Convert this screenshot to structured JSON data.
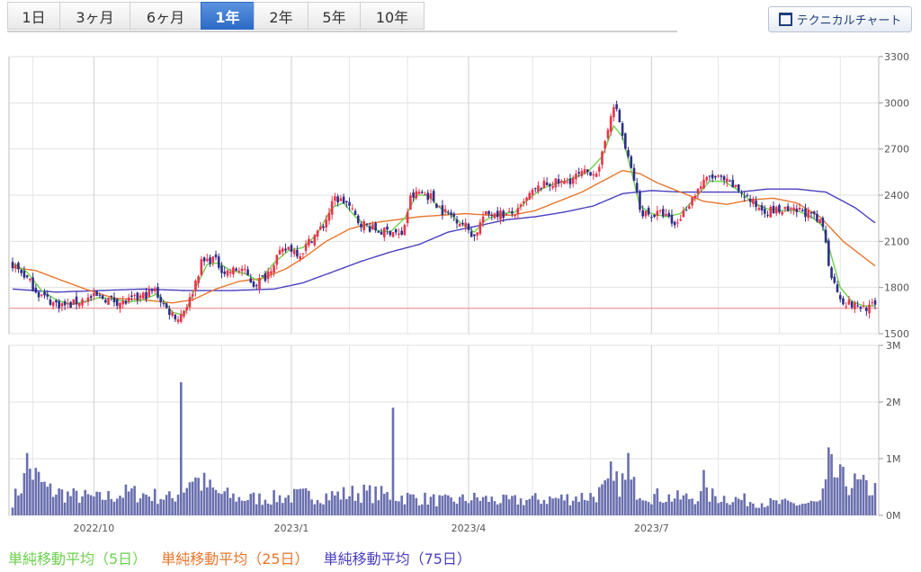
{
  "tabs": [
    "1日",
    "3ヶ月",
    "6ヶ月",
    "1年",
    "2年",
    "5年",
    "10年"
  ],
  "active_tab": "1年",
  "tech_button": "テクニカルチャート",
  "legend": [
    {
      "label": "単純移動平均（5日）",
      "color": "#6cd14e"
    },
    {
      "label": "単純移動平均（25日）",
      "color": "#e8762c"
    },
    {
      "label": "単純移動平均（75日）",
      "color": "#4a3fc0"
    }
  ],
  "colors": {
    "up": "#e8344a",
    "down": "#2f2f86",
    "volume": "#6a6fae",
    "hline": "#ee8080"
  },
  "chart_data": {
    "type": "candlestick",
    "price_ylim": [
      1500,
      3300
    ],
    "price_ticks": [
      "3300",
      "3000",
      "2700",
      "2400",
      "2100",
      "1800",
      "1500"
    ],
    "volume_ylim": [
      0,
      3
    ],
    "volume_ticks": [
      "3M",
      "2M",
      "1M",
      "0M"
    ],
    "x_ticks": [
      "2022/10",
      "2023/1",
      "2023/4",
      "2023/7"
    ],
    "reference_line": 1665,
    "close_keypoints": [
      [
        0,
        1950
      ],
      [
        4,
        1880
      ],
      [
        9,
        1760
      ],
      [
        14,
        1700
      ],
      [
        19,
        1680
      ],
      [
        24,
        1720
      ],
      [
        29,
        1740
      ],
      [
        34,
        1720
      ],
      [
        38,
        1700
      ],
      [
        43,
        1730
      ],
      [
        49,
        1780
      ],
      [
        53,
        1660
      ],
      [
        57,
        1600
      ],
      [
        61,
        1720
      ],
      [
        65,
        1960
      ],
      [
        69,
        1990
      ],
      [
        73,
        1900
      ],
      [
        79,
        1920
      ],
      [
        83,
        1820
      ],
      [
        87,
        1870
      ],
      [
        91,
        2000
      ],
      [
        95,
        2060
      ],
      [
        99,
        2020
      ],
      [
        103,
        2120
      ],
      [
        107,
        2200
      ],
      [
        111,
        2380
      ],
      [
        115,
        2350
      ],
      [
        119,
        2230
      ],
      [
        123,
        2190
      ],
      [
        127,
        2160
      ],
      [
        131,
        2170
      ],
      [
        134,
        2130
      ],
      [
        137,
        2380
      ],
      [
        140,
        2420
      ],
      [
        144,
        2390
      ],
      [
        148,
        2300
      ],
      [
        152,
        2260
      ],
      [
        156,
        2200
      ],
      [
        159,
        2130
      ],
      [
        162,
        2260
      ],
      [
        166,
        2290
      ],
      [
        170,
        2270
      ],
      [
        174,
        2290
      ],
      [
        178,
        2400
      ],
      [
        182,
        2460
      ],
      [
        186,
        2480
      ],
      [
        190,
        2480
      ],
      [
        194,
        2520
      ],
      [
        198,
        2550
      ],
      [
        202,
        2560
      ],
      [
        206,
        2940
      ],
      [
        208,
        2960
      ],
      [
        211,
        2700
      ],
      [
        214,
        2500
      ],
      [
        216,
        2300
      ],
      [
        220,
        2270
      ],
      [
        224,
        2280
      ],
      [
        228,
        2200
      ],
      [
        232,
        2320
      ],
      [
        236,
        2440
      ],
      [
        240,
        2520
      ],
      [
        244,
        2500
      ],
      [
        248,
        2460
      ],
      [
        252,
        2400
      ],
      [
        256,
        2330
      ],
      [
        260,
        2300
      ],
      [
        264,
        2300
      ],
      [
        268,
        2290
      ],
      [
        272,
        2300
      ],
      [
        276,
        2250
      ],
      [
        279,
        2200
      ],
      [
        281,
        1960
      ],
      [
        283,
        1820
      ],
      [
        286,
        1710
      ],
      [
        290,
        1680
      ],
      [
        294,
        1670
      ],
      [
        297,
        1680
      ]
    ],
    "ma5_keypoints": [
      [
        1,
        1950
      ],
      [
        5,
        1900
      ],
      [
        10,
        1780
      ],
      [
        15,
        1720
      ],
      [
        20,
        1690
      ],
      [
        25,
        1710
      ],
      [
        30,
        1735
      ],
      [
        35,
        1725
      ],
      [
        40,
        1705
      ],
      [
        45,
        1720
      ],
      [
        50,
        1760
      ],
      [
        55,
        1640
      ],
      [
        59,
        1620
      ],
      [
        63,
        1800
      ],
      [
        67,
        1950
      ],
      [
        71,
        1960
      ],
      [
        75,
        1910
      ],
      [
        80,
        1890
      ],
      [
        85,
        1840
      ],
      [
        90,
        1960
      ],
      [
        95,
        2040
      ],
      [
        100,
        2060
      ],
      [
        105,
        2150
      ],
      [
        110,
        2320
      ],
      [
        114,
        2350
      ],
      [
        118,
        2260
      ],
      [
        122,
        2200
      ],
      [
        126,
        2170
      ],
      [
        130,
        2160
      ],
      [
        135,
        2250
      ],
      [
        139,
        2400
      ],
      [
        143,
        2400
      ],
      [
        147,
        2320
      ],
      [
        151,
        2270
      ],
      [
        155,
        2210
      ],
      [
        159,
        2160
      ],
      [
        163,
        2240
      ],
      [
        168,
        2280
      ],
      [
        173,
        2290
      ],
      [
        178,
        2380
      ],
      [
        182,
        2440
      ],
      [
        186,
        2470
      ],
      [
        190,
        2490
      ],
      [
        194,
        2520
      ],
      [
        198,
        2550
      ],
      [
        203,
        2650
      ],
      [
        207,
        2850
      ],
      [
        210,
        2780
      ],
      [
        213,
        2560
      ],
      [
        216,
        2330
      ],
      [
        220,
        2280
      ],
      [
        225,
        2260
      ],
      [
        230,
        2280
      ],
      [
        235,
        2380
      ],
      [
        240,
        2490
      ],
      [
        245,
        2490
      ],
      [
        250,
        2430
      ],
      [
        255,
        2350
      ],
      [
        260,
        2310
      ],
      [
        265,
        2300
      ],
      [
        270,
        2300
      ],
      [
        275,
        2260
      ],
      [
        279,
        2200
      ],
      [
        282,
        2000
      ],
      [
        285,
        1800
      ],
      [
        289,
        1710
      ],
      [
        293,
        1680
      ],
      [
        297,
        1680
      ]
    ],
    "ma25_keypoints": [
      [
        0,
        1930
      ],
      [
        8,
        1910
      ],
      [
        15,
        1860
      ],
      [
        25,
        1790
      ],
      [
        35,
        1730
      ],
      [
        45,
        1720
      ],
      [
        55,
        1700
      ],
      [
        62,
        1720
      ],
      [
        70,
        1790
      ],
      [
        78,
        1840
      ],
      [
        86,
        1860
      ],
      [
        94,
        1920
      ],
      [
        100,
        1990
      ],
      [
        108,
        2100
      ],
      [
        116,
        2180
      ],
      [
        124,
        2220
      ],
      [
        132,
        2240
      ],
      [
        140,
        2260
      ],
      [
        148,
        2270
      ],
      [
        156,
        2280
      ],
      [
        164,
        2270
      ],
      [
        172,
        2270
      ],
      [
        180,
        2300
      ],
      [
        188,
        2360
      ],
      [
        196,
        2420
      ],
      [
        204,
        2500
      ],
      [
        210,
        2560
      ],
      [
        216,
        2540
      ],
      [
        222,
        2480
      ],
      [
        230,
        2420
      ],
      [
        238,
        2360
      ],
      [
        246,
        2340
      ],
      [
        254,
        2370
      ],
      [
        262,
        2380
      ],
      [
        270,
        2350
      ],
      [
        278,
        2260
      ],
      [
        286,
        2100
      ],
      [
        297,
        1940
      ]
    ],
    "ma75_keypoints": [
      [
        0,
        1790
      ],
      [
        15,
        1770
      ],
      [
        30,
        1780
      ],
      [
        45,
        1790
      ],
      [
        60,
        1780
      ],
      [
        75,
        1780
      ],
      [
        90,
        1790
      ],
      [
        100,
        1830
      ],
      [
        110,
        1900
      ],
      [
        120,
        1970
      ],
      [
        130,
        2030
      ],
      [
        140,
        2080
      ],
      [
        150,
        2160
      ],
      [
        160,
        2200
      ],
      [
        170,
        2240
      ],
      [
        180,
        2260
      ],
      [
        190,
        2290
      ],
      [
        200,
        2330
      ],
      [
        210,
        2410
      ],
      [
        220,
        2430
      ],
      [
        230,
        2420
      ],
      [
        240,
        2420
      ],
      [
        250,
        2420
      ],
      [
        260,
        2440
      ],
      [
        270,
        2440
      ],
      [
        280,
        2420
      ],
      [
        290,
        2320
      ],
      [
        297,
        2220
      ]
    ],
    "volume_keypoints": [
      [
        0,
        0.25
      ],
      [
        6,
        0.8
      ],
      [
        12,
        0.45
      ],
      [
        20,
        0.35
      ],
      [
        30,
        0.3
      ],
      [
        40,
        0.4
      ],
      [
        48,
        0.35
      ],
      [
        55,
        0.3
      ],
      [
        58,
        0.45
      ],
      [
        60,
        0.55
      ],
      [
        62,
        0.7
      ],
      [
        64,
        0.6
      ],
      [
        66,
        0.55
      ],
      [
        70,
        0.4
      ],
      [
        78,
        0.3
      ],
      [
        88,
        0.3
      ],
      [
        100,
        0.35
      ],
      [
        110,
        0.35
      ],
      [
        120,
        0.4
      ],
      [
        130,
        0.35
      ],
      [
        140,
        0.3
      ],
      [
        150,
        0.25
      ],
      [
        160,
        0.3
      ],
      [
        170,
        0.25
      ],
      [
        180,
        0.28
      ],
      [
        190,
        0.3
      ],
      [
        200,
        0.35
      ],
      [
        206,
        0.5
      ],
      [
        210,
        0.6
      ],
      [
        214,
        0.5
      ],
      [
        220,
        0.35
      ],
      [
        230,
        0.3
      ],
      [
        240,
        0.35
      ],
      [
        250,
        0.28
      ],
      [
        260,
        0.22
      ],
      [
        270,
        0.2
      ],
      [
        278,
        0.22
      ],
      [
        282,
        0.75
      ],
      [
        286,
        0.6
      ],
      [
        290,
        0.55
      ],
      [
        297,
        0.45
      ]
    ],
    "volume_spikes": [
      [
        5,
        1.1
      ],
      [
        58,
        2.35
      ],
      [
        131,
        1.9
      ],
      [
        206,
        0.95
      ],
      [
        212,
        1.1
      ],
      [
        281,
        1.2
      ],
      [
        238,
        0.8
      ]
    ]
  }
}
